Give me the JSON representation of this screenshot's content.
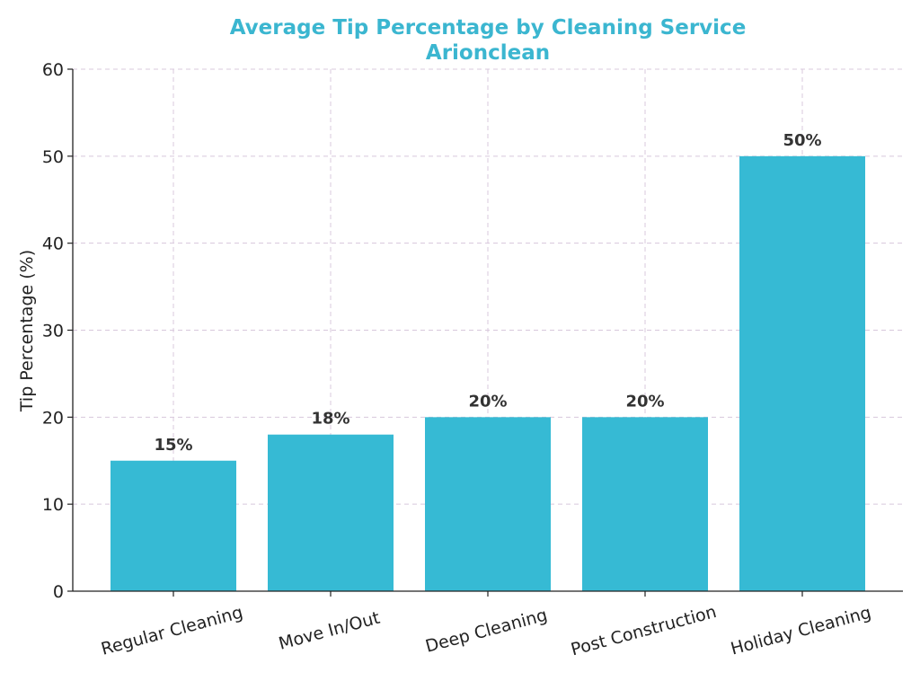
{
  "chart_data": {
    "type": "bar",
    "title": "Average Tip Percentage by Cleaning Service",
    "subtitle": "Arionclean",
    "xlabel": "",
    "ylabel": "Tip Percentage (%)",
    "categories": [
      "Regular Cleaning",
      "Move In/Out",
      "Deep Cleaning",
      "Post Construction",
      "Holiday Cleaning"
    ],
    "values": [
      15,
      18,
      20,
      20,
      50
    ],
    "data_labels": [
      "15%",
      "18%",
      "20%",
      "20%",
      "50%"
    ],
    "ylim": [
      0,
      60
    ],
    "yticks": [
      0,
      10,
      20,
      30,
      40,
      50,
      60
    ],
    "grid": true,
    "legend": "none",
    "bar_color": "#36bad4",
    "title_color": "#3bb6d0"
  }
}
